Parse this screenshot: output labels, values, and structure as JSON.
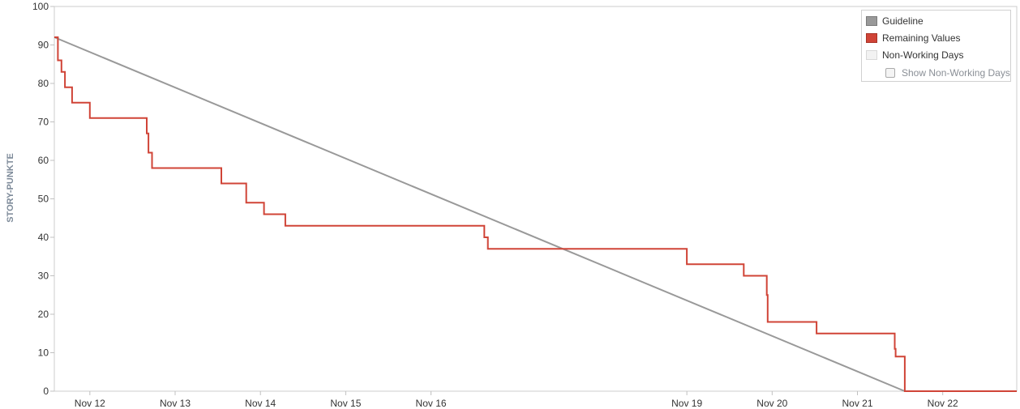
{
  "chart_data": {
    "type": "line",
    "ylabel": "STORY-PUNKTE",
    "ylim": [
      0,
      100
    ],
    "yticks": [
      0,
      10,
      20,
      30,
      40,
      50,
      60,
      70,
      80,
      90,
      100
    ],
    "xlim": [
      "2024-11-11 14:00",
      "2024-11-22 20:50"
    ],
    "xticks": [
      {
        "label": "Nov 12",
        "date": "2024-11-12"
      },
      {
        "label": "Nov 13",
        "date": "2024-11-13"
      },
      {
        "label": "Nov 14",
        "date": "2024-11-14"
      },
      {
        "label": "Nov 15",
        "date": "2024-11-15"
      },
      {
        "label": "Nov 16",
        "date": "2024-11-16"
      },
      {
        "label": "Nov 19",
        "date": "2024-11-19"
      },
      {
        "label": "Nov 20",
        "date": "2024-11-20"
      },
      {
        "label": "Nov 21",
        "date": "2024-11-21"
      },
      {
        "label": "Nov 22",
        "date": "2024-11-22"
      }
    ],
    "grid": false,
    "legend_position": "top-right",
    "series": [
      {
        "name": "Guideline",
        "color": "#999999",
        "style": "line",
        "points": [
          {
            "x": "2024-11-11 14:00",
            "y": 92
          },
          {
            "x": "2024-11-21 13:20",
            "y": 0
          }
        ]
      },
      {
        "name": "Remaining Values",
        "color": "#d04437",
        "style": "step",
        "points": [
          {
            "x": "2024-11-11 14:00",
            "y": 92
          },
          {
            "x": "2024-11-11 15:00",
            "y": 86
          },
          {
            "x": "2024-11-11 16:00",
            "y": 83
          },
          {
            "x": "2024-11-11 17:00",
            "y": 79
          },
          {
            "x": "2024-11-11 19:00",
            "y": 75
          },
          {
            "x": "2024-11-12 00:00",
            "y": 71
          },
          {
            "x": "2024-11-12 16:00",
            "y": 67
          },
          {
            "x": "2024-11-12 16:30",
            "y": 62
          },
          {
            "x": "2024-11-12 17:30",
            "y": 58
          },
          {
            "x": "2024-11-13 13:00",
            "y": 54
          },
          {
            "x": "2024-11-13 20:00",
            "y": 49
          },
          {
            "x": "2024-11-14 01:00",
            "y": 46
          },
          {
            "x": "2024-11-14 07:00",
            "y": 43
          },
          {
            "x": "2024-11-16 15:00",
            "y": 40
          },
          {
            "x": "2024-11-16 16:00",
            "y": 37
          },
          {
            "x": "2024-11-19 00:00",
            "y": 33
          },
          {
            "x": "2024-11-19 16:00",
            "y": 30
          },
          {
            "x": "2024-11-19 22:30",
            "y": 25
          },
          {
            "x": "2024-11-19 22:45",
            "y": 18
          },
          {
            "x": "2024-11-20 12:30",
            "y": 15
          },
          {
            "x": "2024-11-21 10:30",
            "y": 11
          },
          {
            "x": "2024-11-21 10:45",
            "y": 9
          },
          {
            "x": "2024-11-21 13:20",
            "y": 0
          },
          {
            "x": "2024-11-22 20:50",
            "y": 0
          }
        ]
      }
    ]
  },
  "legend": {
    "guideline": {
      "label": "Guideline",
      "color": "#999999"
    },
    "remaining": {
      "label": "Remaining Values",
      "color": "#d04437"
    },
    "non_working": {
      "label": "Non-Working Days",
      "color": "#f2f2f2"
    },
    "show_non_working": {
      "label": "Show Non-Working Days",
      "checked": false
    }
  }
}
